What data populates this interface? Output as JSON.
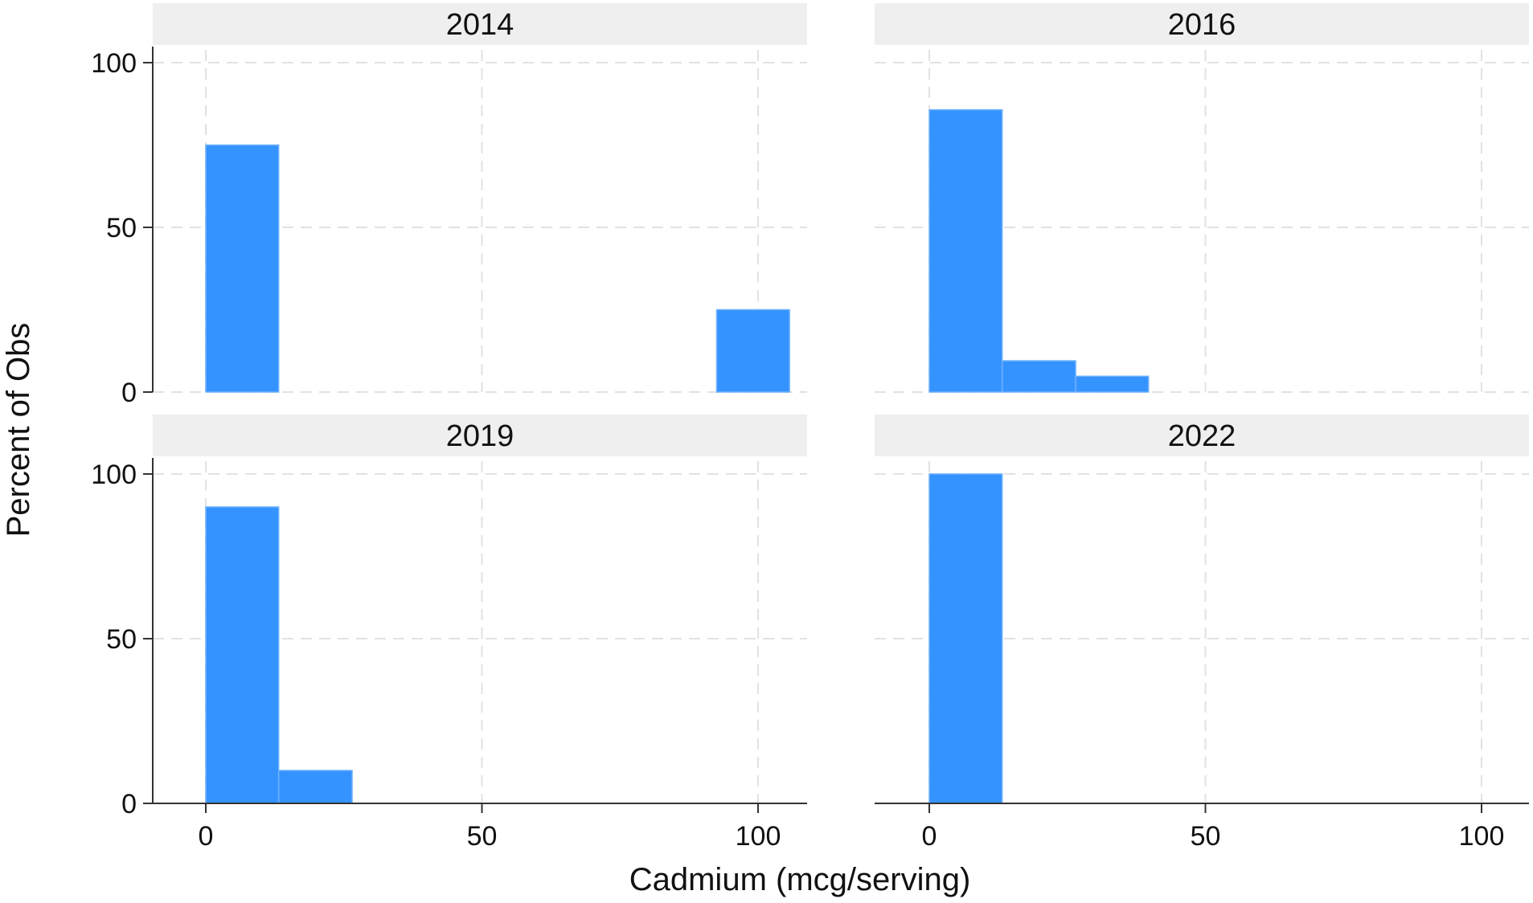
{
  "chart_data": {
    "type": "bar",
    "xlabel": "Cadmium (mcg/serving)",
    "ylabel": "Percent of Obs",
    "xlim": [
      -10,
      109
    ],
    "ylim": [
      0,
      105
    ],
    "xticks": [
      0,
      50,
      100
    ],
    "yticks": [
      0,
      50,
      100
    ],
    "grid": true,
    "bar_color": "#3593FF",
    "panels": [
      {
        "title": "2014",
        "bins": [
          {
            "x0": 0,
            "x1": 13.2,
            "value": 75
          },
          {
            "x0": 92.5,
            "x1": 105.7,
            "value": 25
          }
        ]
      },
      {
        "title": "2016",
        "bins": [
          {
            "x0": 0,
            "x1": 13.2,
            "value": 85.7
          },
          {
            "x0": 13.2,
            "x1": 26.5,
            "value": 9.5
          },
          {
            "x0": 26.5,
            "x1": 39.7,
            "value": 4.8
          }
        ]
      },
      {
        "title": "2019",
        "bins": [
          {
            "x0": 0,
            "x1": 13.2,
            "value": 90
          },
          {
            "x0": 13.2,
            "x1": 26.5,
            "value": 10
          }
        ]
      },
      {
        "title": "2022",
        "bins": [
          {
            "x0": 0,
            "x1": 13.2,
            "value": 100
          }
        ]
      }
    ]
  }
}
